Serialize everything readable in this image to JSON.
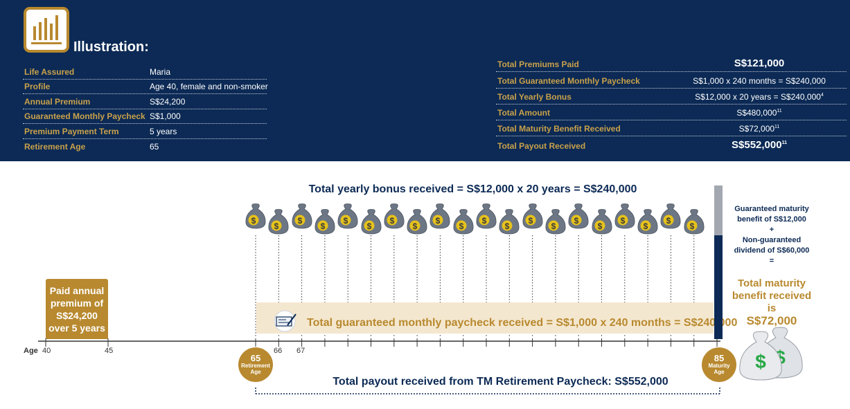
{
  "header": {
    "title": "Illustration:",
    "left_rows": [
      {
        "key": "Life Assured",
        "value": "Maria"
      },
      {
        "key": "Profile",
        "value": "Age 40, female and non-smoker"
      },
      {
        "key": "Annual Premium",
        "value": "S$24,200"
      },
      {
        "key": "Guaranteed Monthly Paycheck",
        "value": "S$1,000"
      },
      {
        "key": "Premium Payment Term",
        "value": "5 years"
      },
      {
        "key": "Retirement Age",
        "value": "65"
      }
    ],
    "right_rows": [
      {
        "key": "Total Premiums Paid",
        "value": "S$121,000"
      },
      {
        "key": "Total Guaranteed Monthly Paycheck",
        "value": "S$1,000 x 240 months = S$240,000"
      },
      {
        "key": "Total Yearly Bonus",
        "value": "S$12,000 x 20 years = S$240,000",
        "sup": "4"
      },
      {
        "key": "Total Amount",
        "value": "S$480,000",
        "sup": "11"
      },
      {
        "key": "Total Maturity Benefit Received",
        "value": "S$72,000",
        "sup": "11"
      },
      {
        "key": "Total Payout Received",
        "value": "S$552,000",
        "sup": "11"
      }
    ]
  },
  "timeline": {
    "bonus_title": "Total yearly bonus received = S$12,000 x 20 years = S$240,000",
    "paycheck_text": "Total guaranteed monthly paycheck received = S$1,000 x 240 months = S$240,000",
    "paid_box": [
      "Paid annual",
      "premium of",
      "S$24,200",
      "over 5 years"
    ],
    "age_label": "Age",
    "ticks": [
      "40",
      "45",
      "66",
      "67"
    ],
    "retirement_circle": {
      "num": "65",
      "line1": "Retirement",
      "line2": "Age"
    },
    "maturity_circle": {
      "num": "85",
      "line1": "Maturity",
      "line2": "Age"
    },
    "payout_text": "Total payout received from TM Retirement Paycheck: S$552,000",
    "bonus_bag_count": 20
  },
  "maturity": {
    "line1": "Guaranteed maturity",
    "line2": "benefit of S$12,000",
    "plus": "+",
    "line3": "Non-guaranteed",
    "line4": "dividend of S$60,000",
    "equals": "=",
    "total1": "Total maturity",
    "total2": "benefit received is",
    "total_amount": "S$72,000"
  },
  "colors": {
    "navy": "#0c2a55",
    "gold": "#b8892f",
    "cream": "#f4e7cf"
  }
}
